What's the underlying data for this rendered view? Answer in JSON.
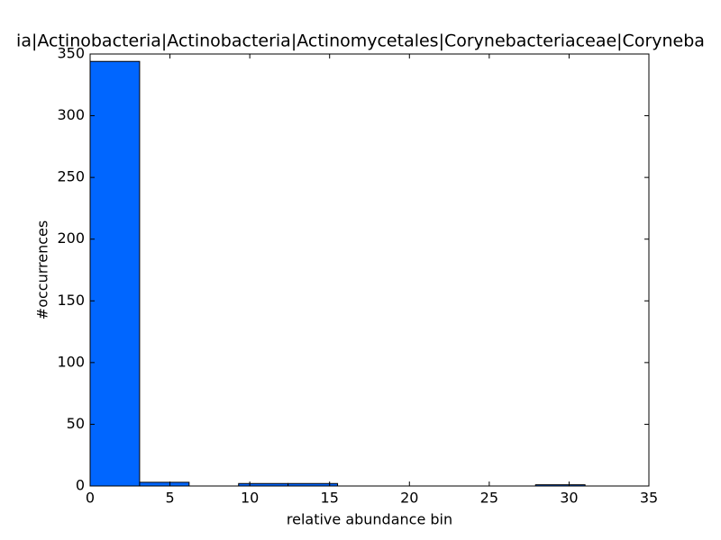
{
  "chart_data": {
    "type": "histogram",
    "title": "ia|Actinobacteria|Actinobacteria|Actinomycetales|Corynebacteriaceae|Coryneba",
    "xlabel": "relative abundance bin",
    "ylabel": "#occurrences",
    "bins": [
      0,
      3.1,
      6.2,
      9.3,
      12.4,
      15.5,
      18.6,
      21.7,
      24.8,
      27.9,
      31.0
    ],
    "values": [
      344,
      3,
      0,
      2,
      2,
      0,
      0,
      0,
      0,
      1
    ],
    "color": "#0066ff",
    "xlim": [
      0,
      35
    ],
    "xticks": [
      0,
      5,
      10,
      15,
      20,
      25,
      30,
      35
    ],
    "ylim": [
      0,
      350
    ],
    "yticks": [
      0,
      50,
      100,
      150,
      200,
      250,
      300,
      350
    ],
    "grid": false
  }
}
